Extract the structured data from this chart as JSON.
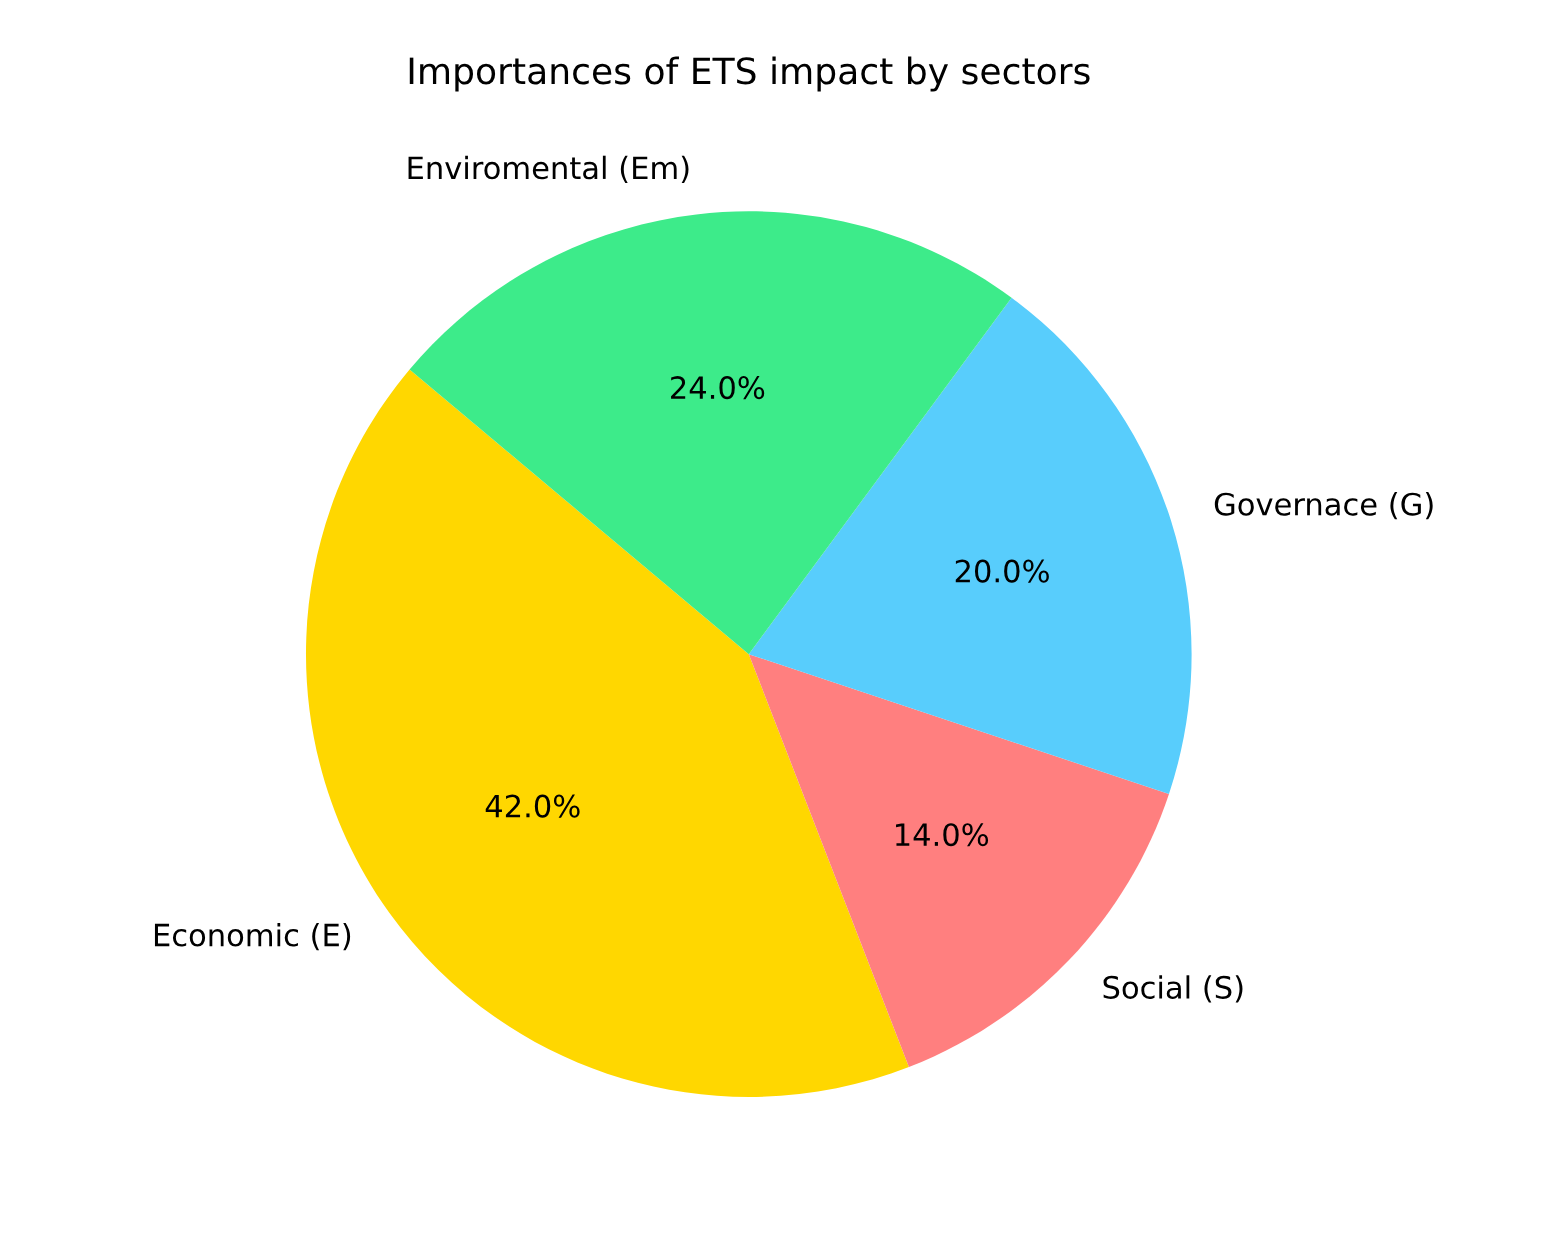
{
  "chart_data": {
    "type": "pie",
    "title": "Importances of ETS impact by sectors",
    "categories": [
      "Economic (E)",
      "Social (S)",
      "Governace (G)",
      "Enviromental (Em)"
    ],
    "values": [
      42,
      14,
      20,
      24
    ],
    "colors": [
      "#ffd700",
      "#ff7f7f",
      "#58cdfc",
      "#3deb8a"
    ],
    "value_labels": [
      "42.0%",
      "14.0%",
      "20.0%",
      "24.0%"
    ]
  }
}
